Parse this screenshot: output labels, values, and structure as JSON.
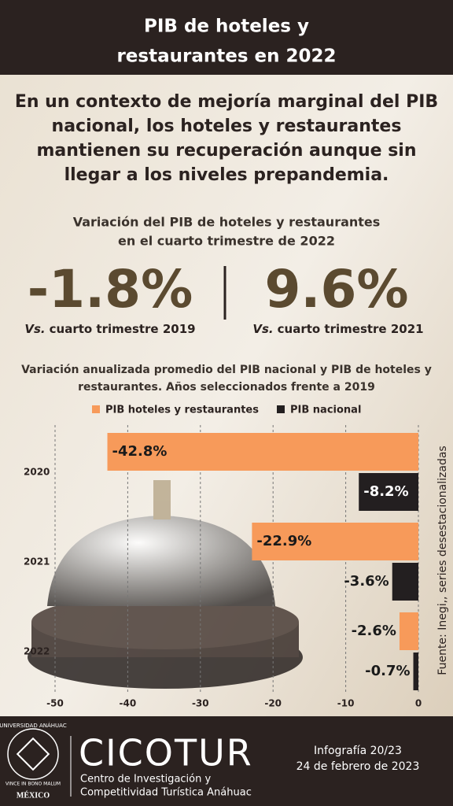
{
  "header": {
    "title_lines": [
      "PIB de hoteles y",
      "restaurantes en 2022"
    ]
  },
  "headline_lines": [
    "En un contexto de mejoría marginal del PIB",
    "nacional, los hoteles y restaurantes",
    "mantienen su recuperación aunque sin",
    "llegar a los niveles prepandemia."
  ],
  "kpi": {
    "subtitle_lines": [
      "Variación del PIB de hoteles y restaurantes",
      "en el cuarto trimestre de 2022"
    ],
    "items": [
      {
        "value": "-1.8%",
        "prefix": "Vs.",
        "caption": "cuarto trimestre 2019"
      },
      {
        "value": "9.6%",
        "prefix": "Vs.",
        "caption": "cuarto trimestre 2021"
      }
    ]
  },
  "chart_data": {
    "type": "bar",
    "orientation": "horizontal",
    "title_lines": [
      "Variación anualizada promedio del PIB nacional y PIB de hoteles y",
      "restaurantes. Años seleccionados frente a 2019"
    ],
    "categories": [
      "2020",
      "2021",
      "2022"
    ],
    "series": [
      {
        "name": "PIB hoteles y restaurantes",
        "color": "#f79a5a",
        "values": [
          -42.8,
          -22.9,
          -2.6
        ],
        "value_labels": [
          "-42.8%",
          "-22.9%",
          "-2.6%"
        ]
      },
      {
        "name": "PIB nacional",
        "color": "#231f20",
        "values": [
          -8.2,
          -3.6,
          -0.7
        ],
        "value_labels": [
          "-8.2%",
          "-3.6%",
          "-0.7%"
        ]
      }
    ],
    "xlim": [
      -50,
      0
    ],
    "xticks": [
      -50,
      -40,
      -30,
      -20,
      -10,
      0
    ],
    "grid": true,
    "source": "Fuente: Inegi,, series desestacionalizadas"
  },
  "footer": {
    "logo_top": "UNIVERSIDAD ANÁHUAC",
    "logo_motto": "VINCE IN BONO MALUM",
    "logo_bottom": "MÉXICO",
    "brand": "CICOTUR",
    "brand_lines": [
      "Centro de Investigación y",
      "Competitividad Turística Anáhuac"
    ],
    "issue": "Infografía 20/23",
    "date": "24 de febrero de 2023"
  }
}
